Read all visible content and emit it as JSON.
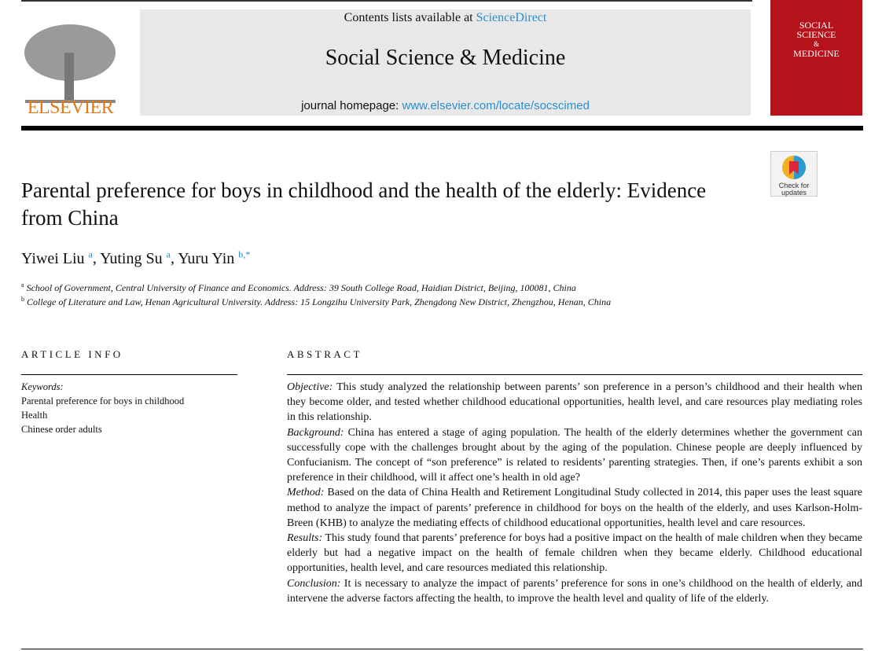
{
  "header": {
    "contents_prefix": "Contents lists available at ",
    "sciencedirect": "ScienceDirect",
    "journal": "Social Science & Medicine",
    "homepage_prefix": "journal homepage: ",
    "homepage_url": "www.elsevier.com/locate/socscimed",
    "publisher": "ELSEVIER",
    "cover_lines": [
      "SOCIAL",
      "SCIENCE",
      "&",
      "MEDICINE"
    ],
    "check_updates": [
      "Check for",
      "updates"
    ]
  },
  "article": {
    "title": "Parental preference for boys in childhood and the health of the elderly: Evidence from China",
    "authors": [
      {
        "name": "Yiwei Liu",
        "sup": "a"
      },
      {
        "name": "Yuting Su",
        "sup": "a"
      },
      {
        "name": "Yuru Yin",
        "sup": "b,*"
      }
    ],
    "affiliations": [
      {
        "sup": "a",
        "text": "School of Government, Central University of Finance and Economics. Address: 39 South College Road, Haidian District, Beijing, 100081, China"
      },
      {
        "sup": "b",
        "text": "College of Literature and Law, Henan Agricultural University. Address: 15 Longzihu University Park, Zhengdong New District, Zhengzhou, Henan, China"
      }
    ]
  },
  "info": {
    "heading": "ARTICLE INFO",
    "keywords_label": "Keywords:",
    "keywords": [
      "Parental preference for boys in childhood",
      "Health",
      "Chinese order adults"
    ]
  },
  "abstract": {
    "heading": "ABSTRACT",
    "sections": [
      {
        "label": "Objective:",
        "text": " This study analyzed the relationship between parents’ son preference in a person’s childhood and their health when they become older, and tested whether childhood educational opportunities, health level, and care resources play mediating roles in this relationship."
      },
      {
        "label": "Background:",
        "text": " China has entered a stage of aging population. The health of the elderly determines whether the government can successfully cope with the challenges brought about by the aging of the population. Chinese people are deeply influenced by Confucianism. The concept of “son preference” is related to residents’ parenting strategies. Then, if one’s parents exhibit a son preference in their childhood, will it affect one’s health in old age?"
      },
      {
        "label": "Method:",
        "text": " Based on the data of China Health and Retirement Longitudinal Study collected in 2014, this paper uses the least square method to analyze the impact of parents’ preference in childhood for boys on the health of the elderly, and uses Karlson-Holm-Breen (KHB) to analyze the mediating effects of childhood educational opportunities, health level and care resources."
      },
      {
        "label": "Results:",
        "text": " This study found that parents’ preference for boys had a positive impact on the health of male children when they became elderly but had a negative impact on the health of female children when they became elderly. Childhood educational opportunities, health level, and care resources mediated this relationship."
      },
      {
        "label": "Conclusion:",
        "text": " It is necessary to analyze the impact of parents’ preference for sons in one’s childhood on the health of elderly, and intervene the adverse factors affecting the health, to improve the health level and quality of life of the elderly."
      }
    ]
  }
}
